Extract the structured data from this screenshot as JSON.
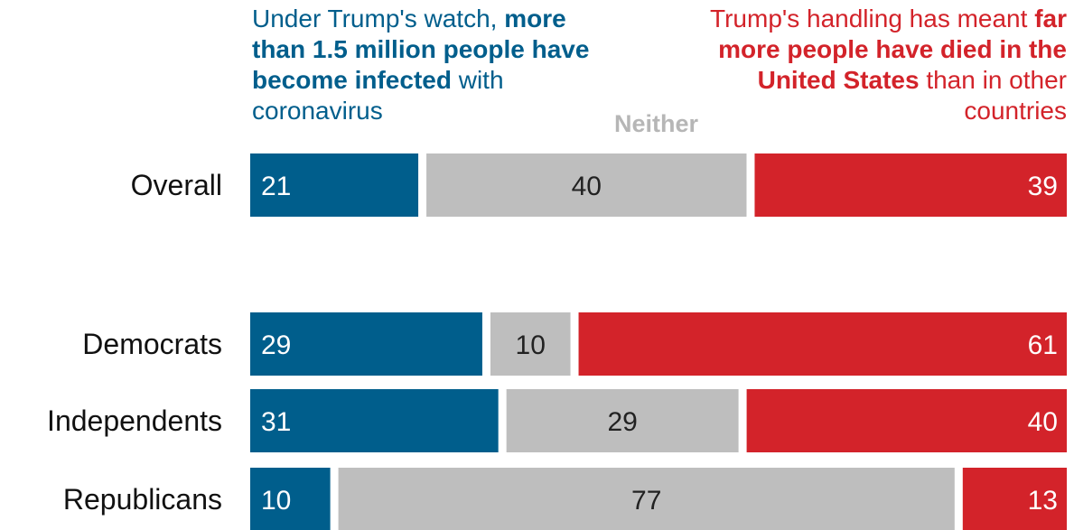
{
  "colors": {
    "blue": "#005e8c",
    "gray": "#bebebe",
    "red": "#d3232a",
    "gray_text": "#b6b6b6"
  },
  "legend": {
    "left_pre": "Under Trump's watch,",
    "left_bold": "more than 1.5 million people have become infected",
    "left_post": "with coronavirus",
    "middle": "Neither",
    "right_pre": "Trump's handling has meant",
    "right_bold": "far more people have died in the United States",
    "right_post": "than in other countries"
  },
  "chart_data": {
    "type": "bar",
    "orientation": "horizontal",
    "stacked": true,
    "scale": "percent",
    "categories": [
      "Overall",
      "Democrats",
      "Independents",
      "Republicans"
    ],
    "series": [
      {
        "name": "Under Trump's watch, more than 1.5 million people have become infected with coronavirus",
        "values": [
          21,
          29,
          31,
          10
        ]
      },
      {
        "name": "Neither",
        "values": [
          40,
          10,
          29,
          77
        ]
      },
      {
        "name": "Trump's handling has meant far more people have died in the United States than in other countries",
        "values": [
          39,
          61,
          40,
          13
        ]
      }
    ]
  }
}
